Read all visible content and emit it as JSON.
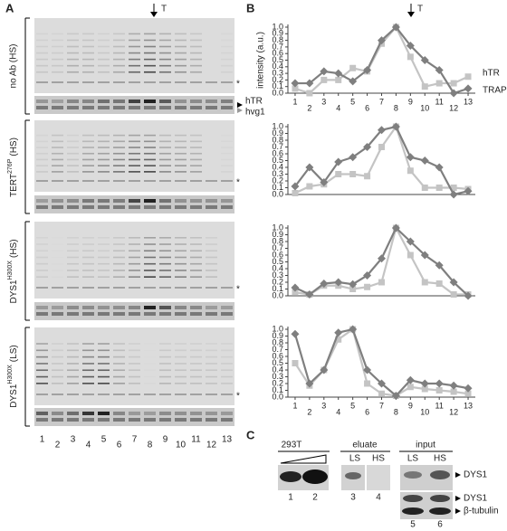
{
  "panel_labels": [
    "A",
    "B",
    "C"
  ],
  "panel_a": {
    "arrow_label": "T",
    "gels": [
      {
        "label": "no Ab (HS)"
      },
      {
        "label": "TERT",
        "sup": "276P",
        "suffix": "(HS)"
      },
      {
        "label": "DYS1",
        "sup": "H300X",
        "suffix": "(HS)"
      },
      {
        "label": "DYS1",
        "sup": "H300X",
        "suffix": "(LS)"
      }
    ],
    "star": "*",
    "band_labels": [
      "hTR",
      "hvg1"
    ],
    "lanes": [
      1,
      2,
      3,
      4,
      5,
      6,
      7,
      8,
      9,
      10,
      11,
      12,
      13
    ]
  },
  "panel_b": {
    "arrow_label": "T"
  },
  "panel_c": {
    "groups": [
      "293T",
      "eluate",
      "input"
    ],
    "sublabels": [
      "LS",
      "HS",
      "LS",
      "HS"
    ],
    "lanes": [
      1,
      2,
      3,
      4,
      5,
      6
    ],
    "blot_labels": [
      "DYS1",
      "DYS1",
      "β-tubulin"
    ]
  },
  "chart_data": [
    {
      "type": "line",
      "y_label": "intensity (a.u.)",
      "legend": "right",
      "x": [
        1,
        2,
        3,
        4,
        5,
        6,
        7,
        8,
        9,
        10,
        11,
        12,
        13
      ],
      "xlim": [
        0.5,
        13.5
      ],
      "xticks": [
        1,
        2,
        3,
        4,
        5,
        6,
        7,
        8,
        9,
        10,
        11,
        12,
        13
      ],
      "ylim": [
        0,
        1
      ],
      "yticks": [
        {
          "value": 0,
          "label": "0.0"
        },
        0.1,
        0.2,
        0.3,
        0.4,
        0.5,
        0.6,
        0.7,
        0.8,
        0.9,
        {
          "value": 1,
          "label": "1.0"
        }
      ],
      "series": [
        {
          "name": "hTR",
          "color": "#c4c4c4",
          "marker": "square",
          "values": [
            0.07,
            0.0,
            0.2,
            0.2,
            0.38,
            0.33,
            0.75,
            1.0,
            0.55,
            0.1,
            0.15,
            0.15,
            0.25
          ]
        },
        {
          "name": "TRAP",
          "color": "#7f7f7f",
          "marker": "diamond",
          "values": [
            0.15,
            0.15,
            0.33,
            0.3,
            0.18,
            0.35,
            0.8,
            1.0,
            0.72,
            0.5,
            0.35,
            0.0,
            0.07
          ]
        }
      ]
    },
    {
      "type": "line",
      "x": [
        1,
        2,
        3,
        4,
        5,
        6,
        7,
        8,
        9,
        10,
        11,
        12,
        13
      ],
      "xlim": [
        0.5,
        13.5
      ],
      "ylim": [
        0,
        1
      ],
      "yticks": [
        {
          "value": 0,
          "label": "0.0"
        },
        0.1,
        0.2,
        0.3,
        0.4,
        0.5,
        0.6,
        0.7,
        0.8,
        0.9,
        {
          "value": 1,
          "label": "1.0"
        }
      ],
      "series": [
        {
          "name": "hTR",
          "color": "#c4c4c4",
          "marker": "square",
          "values": [
            0.02,
            0.12,
            0.15,
            0.3,
            0.3,
            0.27,
            0.7,
            1.0,
            0.35,
            0.1,
            0.1,
            0.1,
            0.08
          ]
        },
        {
          "name": "TRAP",
          "color": "#7f7f7f",
          "marker": "diamond",
          "values": [
            0.12,
            0.4,
            0.18,
            0.48,
            0.55,
            0.7,
            0.95,
            1.0,
            0.55,
            0.5,
            0.4,
            0.0,
            0.05
          ]
        }
      ]
    },
    {
      "type": "line",
      "x": [
        1,
        2,
        3,
        4,
        5,
        6,
        7,
        8,
        9,
        10,
        11,
        12,
        13
      ],
      "xlim": [
        0.5,
        13.5
      ],
      "ylim": [
        0,
        1
      ],
      "yticks": [
        {
          "value": 0,
          "label": "0.0"
        },
        0.1,
        0.2,
        0.3,
        0.4,
        0.5,
        0.6,
        0.7,
        0.8,
        0.9,
        {
          "value": 1,
          "label": "1.0"
        }
      ],
      "series": [
        {
          "name": "hTR",
          "color": "#c4c4c4",
          "marker": "square",
          "values": [
            0.05,
            0.02,
            0.15,
            0.15,
            0.1,
            0.13,
            0.2,
            1.0,
            0.6,
            0.2,
            0.18,
            0.02,
            0.02
          ]
        },
        {
          "name": "TRAP",
          "color": "#7f7f7f",
          "marker": "diamond",
          "values": [
            0.12,
            0.02,
            0.18,
            0.2,
            0.17,
            0.3,
            0.55,
            1.0,
            0.8,
            0.6,
            0.45,
            0.2,
            0.0
          ]
        }
      ]
    },
    {
      "type": "line",
      "x": [
        1,
        2,
        3,
        4,
        5,
        6,
        7,
        8,
        9,
        10,
        11,
        12,
        13
      ],
      "xlim": [
        0.5,
        13.5
      ],
      "xticks": [
        1,
        2,
        3,
        4,
        5,
        6,
        7,
        8,
        9,
        10,
        11,
        12,
        13
      ],
      "ylim": [
        0,
        1
      ],
      "yticks": [
        {
          "value": 0,
          "label": "0.0"
        },
        0.1,
        0.2,
        0.3,
        0.4,
        0.5,
        0.6,
        0.7,
        0.8,
        0.9,
        {
          "value": 1,
          "label": "1.0"
        }
      ],
      "series": [
        {
          "name": "hTR",
          "color": "#c4c4c4",
          "marker": "square",
          "values": [
            0.5,
            0.17,
            0.4,
            0.85,
            1.0,
            0.2,
            0.05,
            0.02,
            0.15,
            0.12,
            0.1,
            0.08,
            0.05
          ]
        },
        {
          "name": "TRAP",
          "color": "#7f7f7f",
          "marker": "diamond",
          "values": [
            0.93,
            0.2,
            0.4,
            0.95,
            1.0,
            0.4,
            0.2,
            0.02,
            0.25,
            0.2,
            0.2,
            0.17,
            0.13
          ]
        }
      ]
    }
  ]
}
